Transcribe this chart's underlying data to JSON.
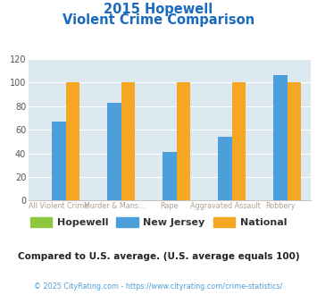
{
  "title_line1": "2015 Hopewell",
  "title_line2": "Violent Crime Comparison",
  "cat_line1": [
    "",
    "Murder & Mans...",
    "",
    "Aggravated Assault",
    ""
  ],
  "cat_line2": [
    "All Violent Crime",
    "",
    "Rape",
    "",
    "Robbery"
  ],
  "hopewell": [
    0,
    0,
    0,
    0,
    0
  ],
  "new_jersey": [
    67,
    83,
    41,
    54,
    106
  ],
  "national": [
    100,
    100,
    100,
    100,
    100
  ],
  "color_hopewell": "#8dc63f",
  "color_nj": "#4d9fdb",
  "color_national": "#f5a623",
  "ylim": [
    0,
    120
  ],
  "yticks": [
    0,
    20,
    40,
    60,
    80,
    100,
    120
  ],
  "bg_color": "#dce9f0",
  "title_color": "#1a6bbd",
  "xlabel_color": "#b0a090",
  "subtitle_text": "Compared to U.S. average. (U.S. average equals 100)",
  "footer_text": "© 2025 CityRating.com - https://www.cityrating.com/crime-statistics/",
  "footer_color": "#4d9fdb",
  "subtitle_color": "#222222",
  "legend_hopewell": "Hopewell",
  "legend_nj": "New Jersey",
  "legend_national": "National"
}
